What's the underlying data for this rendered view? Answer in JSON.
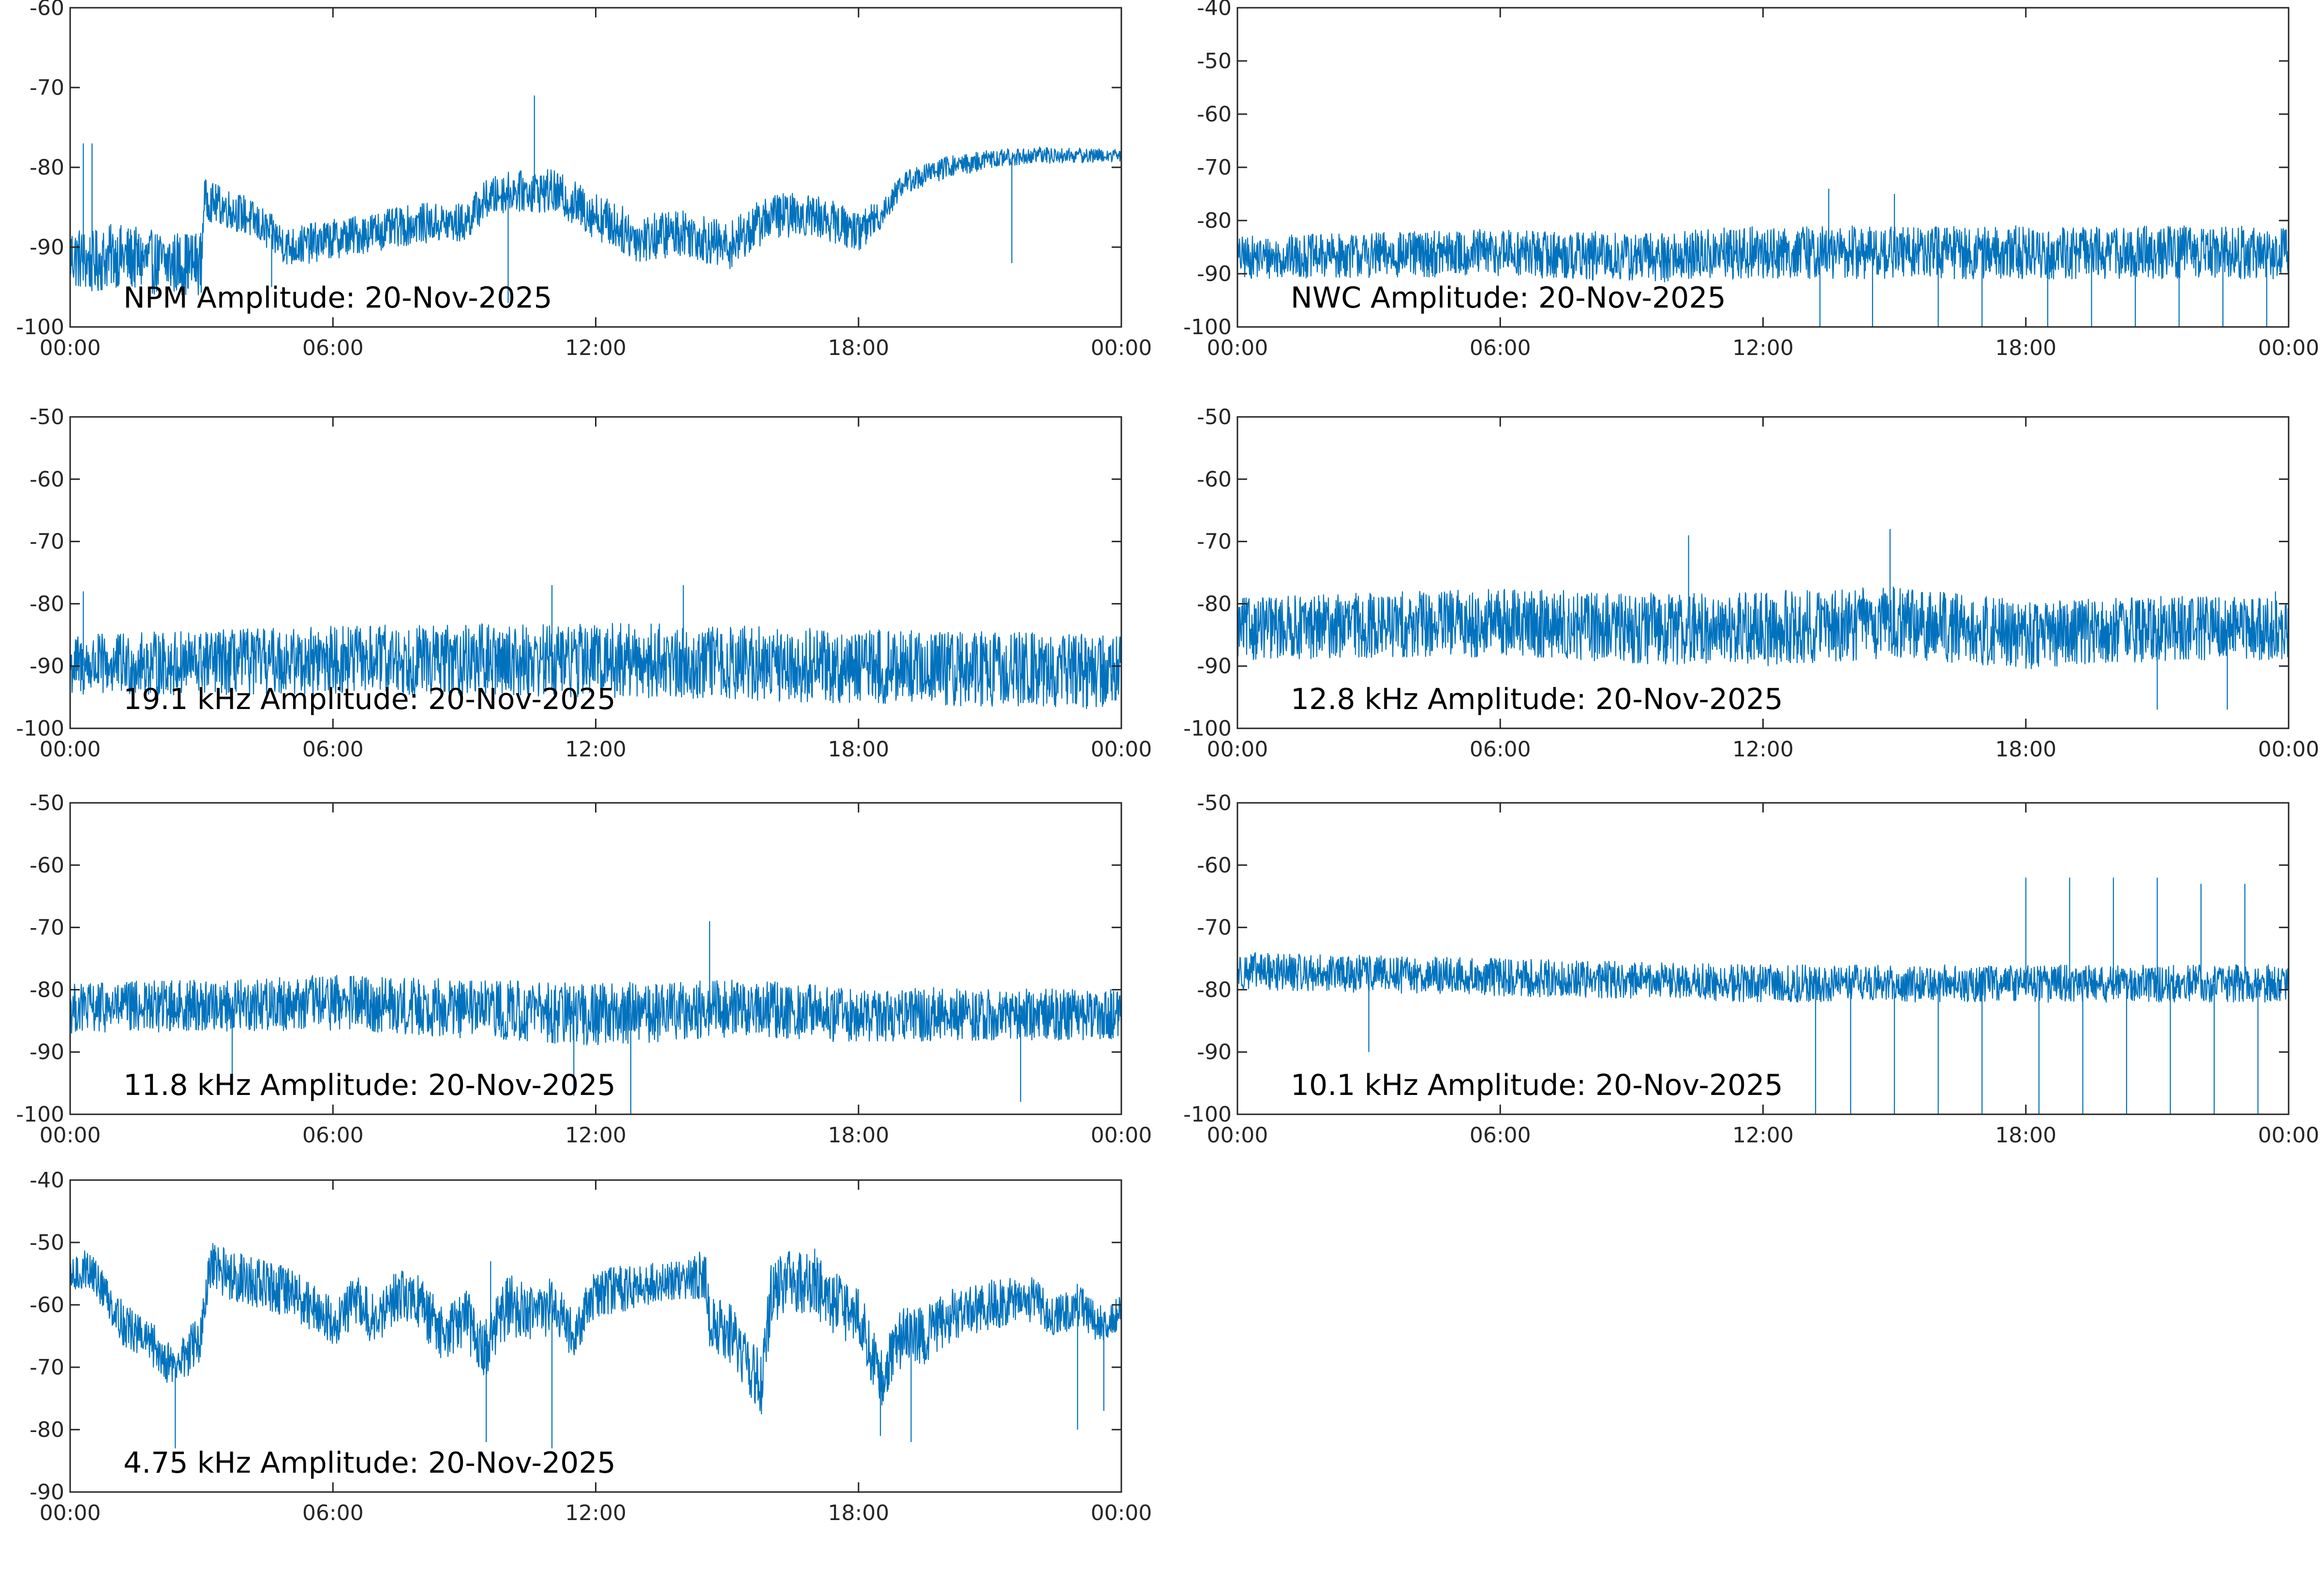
{
  "figure": {
    "series_color": "#0072bd",
    "axis_color": "#262626",
    "background": "#ffffff"
  },
  "chart_data": [
    {
      "type": "line",
      "title": "NPM Amplitude: 20-Nov-2025",
      "x_tick_labels": [
        "00:00",
        "06:00",
        "12:00",
        "18:00",
        "00:00"
      ],
      "x_range_hours": [
        0,
        24
      ],
      "ylim": [
        -100,
        -60
      ],
      "y_ticks": [
        -100,
        -90,
        -80,
        -70,
        -60
      ],
      "series": [
        {
          "name": "NPM",
          "base": [
            [
              0,
              -91
            ],
            [
              0.5,
              -92
            ],
            [
              1,
              -91
            ],
            [
              2,
              -92
            ],
            [
              3,
              -92
            ],
            [
              3.05,
              -84
            ],
            [
              4,
              -86
            ],
            [
              5,
              -90
            ],
            [
              6,
              -89
            ],
            [
              7,
              -88
            ],
            [
              8,
              -87
            ],
            [
              9,
              -87
            ],
            [
              9.5,
              -84
            ],
            [
              10,
              -83
            ],
            [
              11,
              -83
            ],
            [
              12,
              -86
            ],
            [
              13,
              -89
            ],
            [
              14,
              -88
            ],
            [
              15,
              -90
            ],
            [
              16,
              -86
            ],
            [
              17,
              -86
            ],
            [
              18,
              -88
            ],
            [
              18.5,
              -86
            ],
            [
              19,
              -82
            ],
            [
              20,
              -80
            ],
            [
              21,
              -79
            ],
            [
              22,
              -78.5
            ],
            [
              23,
              -78.5
            ],
            [
              24,
              -78.5
            ]
          ],
          "spread": [
            [
              0,
              4
            ],
            [
              3,
              4
            ],
            [
              3.1,
              2.5
            ],
            [
              9,
              2.5
            ],
            [
              10,
              2.5
            ],
            [
              12,
              3
            ],
            [
              15,
              3
            ],
            [
              18,
              2.5
            ],
            [
              19,
              1.5
            ],
            [
              24,
              0.8
            ]
          ],
          "spikes": [
            [
              0.3,
              -77
            ],
            [
              0.5,
              -77
            ],
            [
              10.6,
              -71
            ],
            [
              21.5,
              -92
            ],
            [
              10,
              -97
            ],
            [
              4.6,
              -95
            ]
          ]
        }
      ]
    },
    {
      "type": "line",
      "title": "NWC Amplitude: 20-Nov-2025",
      "x_tick_labels": [
        "00:00",
        "06:00",
        "12:00",
        "18:00",
        "00:00"
      ],
      "x_range_hours": [
        0,
        24
      ],
      "ylim": [
        -100,
        -40
      ],
      "y_ticks": [
        -100,
        -90,
        -80,
        -70,
        -60,
        -50,
        -40
      ],
      "series": [
        {
          "name": "NWC",
          "base": [
            [
              0,
              -87
            ],
            [
              6,
              -86
            ],
            [
              9,
              -87
            ],
            [
              12,
              -86
            ],
            [
              18,
              -86
            ],
            [
              24,
              -86
            ]
          ],
          "spread": [
            [
              0,
              4
            ],
            [
              12,
              5
            ],
            [
              24,
              5
            ]
          ],
          "spikes": [
            [
              13.5,
              -74
            ],
            [
              15,
              -75
            ],
            [
              18.5,
              -100
            ],
            [
              19.5,
              -100
            ],
            [
              20.5,
              -100
            ],
            [
              21.5,
              -100
            ],
            [
              22.5,
              -100
            ],
            [
              23.5,
              -100
            ],
            [
              13.3,
              -100
            ],
            [
              14.5,
              -100
            ],
            [
              16,
              -100
            ],
            [
              17,
              -100
            ]
          ]
        }
      ]
    },
    {
      "type": "line",
      "title": "19.1 kHz Amplitude: 20-Nov-2025",
      "x_tick_labels": [
        "00:00",
        "06:00",
        "12:00",
        "18:00",
        "00:00"
      ],
      "x_range_hours": [
        0,
        24
      ],
      "ylim": [
        -100,
        -50
      ],
      "y_ticks": [
        -100,
        -90,
        -80,
        -70,
        -60,
        -50
      ],
      "series": [
        {
          "name": "19.1 kHz",
          "base": [
            [
              0,
              -90
            ],
            [
              6,
              -89
            ],
            [
              12,
              -89
            ],
            [
              18,
              -90
            ],
            [
              24,
              -91
            ]
          ],
          "spread": [
            [
              0,
              5
            ],
            [
              12,
              6
            ],
            [
              24,
              6
            ]
          ],
          "spikes": [
            [
              0.3,
              -78
            ],
            [
              11,
              -77
            ],
            [
              14,
              -77
            ]
          ]
        }
      ]
    },
    {
      "type": "line",
      "title": "12.8 kHz Amplitude: 20-Nov-2025",
      "x_tick_labels": [
        "00:00",
        "06:00",
        "12:00",
        "18:00",
        "00:00"
      ],
      "x_range_hours": [
        0,
        24
      ],
      "ylim": [
        -100,
        -50
      ],
      "y_ticks": [
        -100,
        -90,
        -80,
        -70,
        -60,
        -50
      ],
      "series": [
        {
          "name": "12.8 kHz",
          "base": [
            [
              0,
              -84
            ],
            [
              6,
              -83
            ],
            [
              9,
              -84
            ],
            [
              12,
              -84
            ],
            [
              15,
              -83
            ],
            [
              18,
              -85
            ],
            [
              21,
              -84
            ],
            [
              24,
              -84
            ]
          ],
          "spread": [
            [
              0,
              5
            ],
            [
              12,
              6
            ],
            [
              24,
              5
            ]
          ],
          "spikes": [
            [
              10.3,
              -69
            ],
            [
              14.9,
              -68
            ],
            [
              21,
              -97
            ],
            [
              22.6,
              -97
            ],
            [
              23.7,
              -78
            ]
          ]
        }
      ]
    },
    {
      "type": "line",
      "title": "11.8 kHz Amplitude: 20-Nov-2025",
      "x_tick_labels": [
        "00:00",
        "06:00",
        "12:00",
        "18:00",
        "00:00"
      ],
      "x_range_hours": [
        0,
        24
      ],
      "ylim": [
        -100,
        -50
      ],
      "y_ticks": [
        -100,
        -90,
        -80,
        -70,
        -60,
        -50
      ],
      "series": [
        {
          "name": "11.8 kHz",
          "base": [
            [
              0,
              -83
            ],
            [
              6,
              -82
            ],
            [
              9,
              -83
            ],
            [
              12,
              -84
            ],
            [
              15,
              -83
            ],
            [
              18,
              -84
            ],
            [
              24,
              -84
            ]
          ],
          "spread": [
            [
              0,
              4
            ],
            [
              12,
              5
            ],
            [
              24,
              4
            ]
          ],
          "spikes": [
            [
              12.8,
              -100
            ],
            [
              14.6,
              -69
            ],
            [
              21.7,
              -98
            ],
            [
              11.5,
              -97
            ],
            [
              3.7,
              -95
            ]
          ]
        }
      ]
    },
    {
      "type": "line",
      "title": "10.1 kHz Amplitude: 20-Nov-2025",
      "x_tick_labels": [
        "00:00",
        "06:00",
        "12:00",
        "18:00",
        "00:00"
      ],
      "x_range_hours": [
        0,
        24
      ],
      "ylim": [
        -100,
        -50
      ],
      "y_ticks": [
        -100,
        -90,
        -80,
        -70,
        -60,
        -50
      ],
      "series": [
        {
          "name": "10.1 kHz",
          "base": [
            [
              0,
              -77
            ],
            [
              6,
              -78
            ],
            [
              12,
              -79
            ],
            [
              18,
              -79
            ],
            [
              24,
              -79
            ]
          ],
          "spread": [
            [
              0,
              3
            ],
            [
              24,
              3
            ]
          ],
          "spikes": [
            [
              3,
              -90
            ],
            [
              18,
              -62
            ],
            [
              19,
              -62
            ],
            [
              20,
              -62
            ],
            [
              21,
              -62
            ],
            [
              22,
              -63
            ],
            [
              23,
              -63
            ],
            [
              24,
              -62
            ],
            [
              13.2,
              -100
            ],
            [
              14,
              -100
            ],
            [
              15,
              -100
            ],
            [
              16,
              -100
            ],
            [
              17,
              -100
            ],
            [
              18.3,
              -100
            ],
            [
              19.3,
              -100
            ],
            [
              20.3,
              -100
            ],
            [
              21.3,
              -100
            ],
            [
              22.3,
              -100
            ],
            [
              23.3,
              -100
            ]
          ]
        }
      ]
    },
    {
      "type": "line",
      "title": "4.75 kHz Amplitude: 20-Nov-2025",
      "x_tick_labels": [
        "00:00",
        "06:00",
        "12:00",
        "18:00",
        "00:00"
      ],
      "x_range_hours": [
        0,
        24
      ],
      "ylim": [
        -90,
        -40
      ],
      "y_ticks": [
        -90,
        -80,
        -70,
        -60,
        -50,
        -40
      ],
      "series": [
        {
          "name": "4.75 kHz",
          "base": [
            [
              0,
              -56
            ],
            [
              0.4,
              -54
            ],
            [
              0.8,
              -58
            ],
            [
              1.2,
              -63
            ],
            [
              1.8,
              -66
            ],
            [
              2.4,
              -70
            ],
            [
              3,
              -65
            ],
            [
              3.2,
              -54
            ],
            [
              4,
              -56
            ],
            [
              5,
              -58
            ],
            [
              5.5,
              -60
            ],
            [
              6,
              -63
            ],
            [
              6.5,
              -59
            ],
            [
              7,
              -63
            ],
            [
              7.5,
              -58
            ],
            [
              8,
              -60
            ],
            [
              8.5,
              -65
            ],
            [
              9,
              -62
            ],
            [
              9.5,
              -67
            ],
            [
              10,
              -60
            ],
            [
              10.5,
              -62
            ],
            [
              11,
              -60
            ],
            [
              11.5,
              -65
            ],
            [
              12,
              -58
            ],
            [
              13,
              -57
            ],
            [
              14,
              -56
            ],
            [
              14.5,
              -55
            ],
            [
              14.6,
              -63
            ],
            [
              15,
              -64
            ],
            [
              15.5,
              -70
            ],
            [
              15.8,
              -73
            ],
            [
              16,
              -58
            ],
            [
              16.5,
              -56
            ],
            [
              17,
              -57
            ],
            [
              17.5,
              -60
            ],
            [
              18,
              -62
            ],
            [
              18.5,
              -72
            ],
            [
              19,
              -65
            ],
            [
              19.5,
              -65
            ],
            [
              20,
              -62
            ],
            [
              21,
              -60
            ],
            [
              22,
              -59
            ],
            [
              22.5,
              -62
            ],
            [
              23,
              -60
            ],
            [
              23.5,
              -63
            ],
            [
              24,
              -61
            ]
          ],
          "spread": [
            [
              0,
              3
            ],
            [
              3,
              4
            ],
            [
              6,
              4
            ],
            [
              10,
              5
            ],
            [
              14,
              3
            ],
            [
              15,
              5
            ],
            [
              18,
              5
            ],
            [
              24,
              3
            ]
          ],
          "spikes": [
            [
              2.4,
              -83
            ],
            [
              9.5,
              -82
            ],
            [
              11,
              -83
            ],
            [
              18.5,
              -81
            ],
            [
              19.2,
              -82
            ],
            [
              23,
              -80
            ],
            [
              23.6,
              -77
            ],
            [
              17,
              -51
            ],
            [
              9.6,
              -53
            ],
            [
              5,
              -56
            ]
          ]
        }
      ]
    }
  ]
}
